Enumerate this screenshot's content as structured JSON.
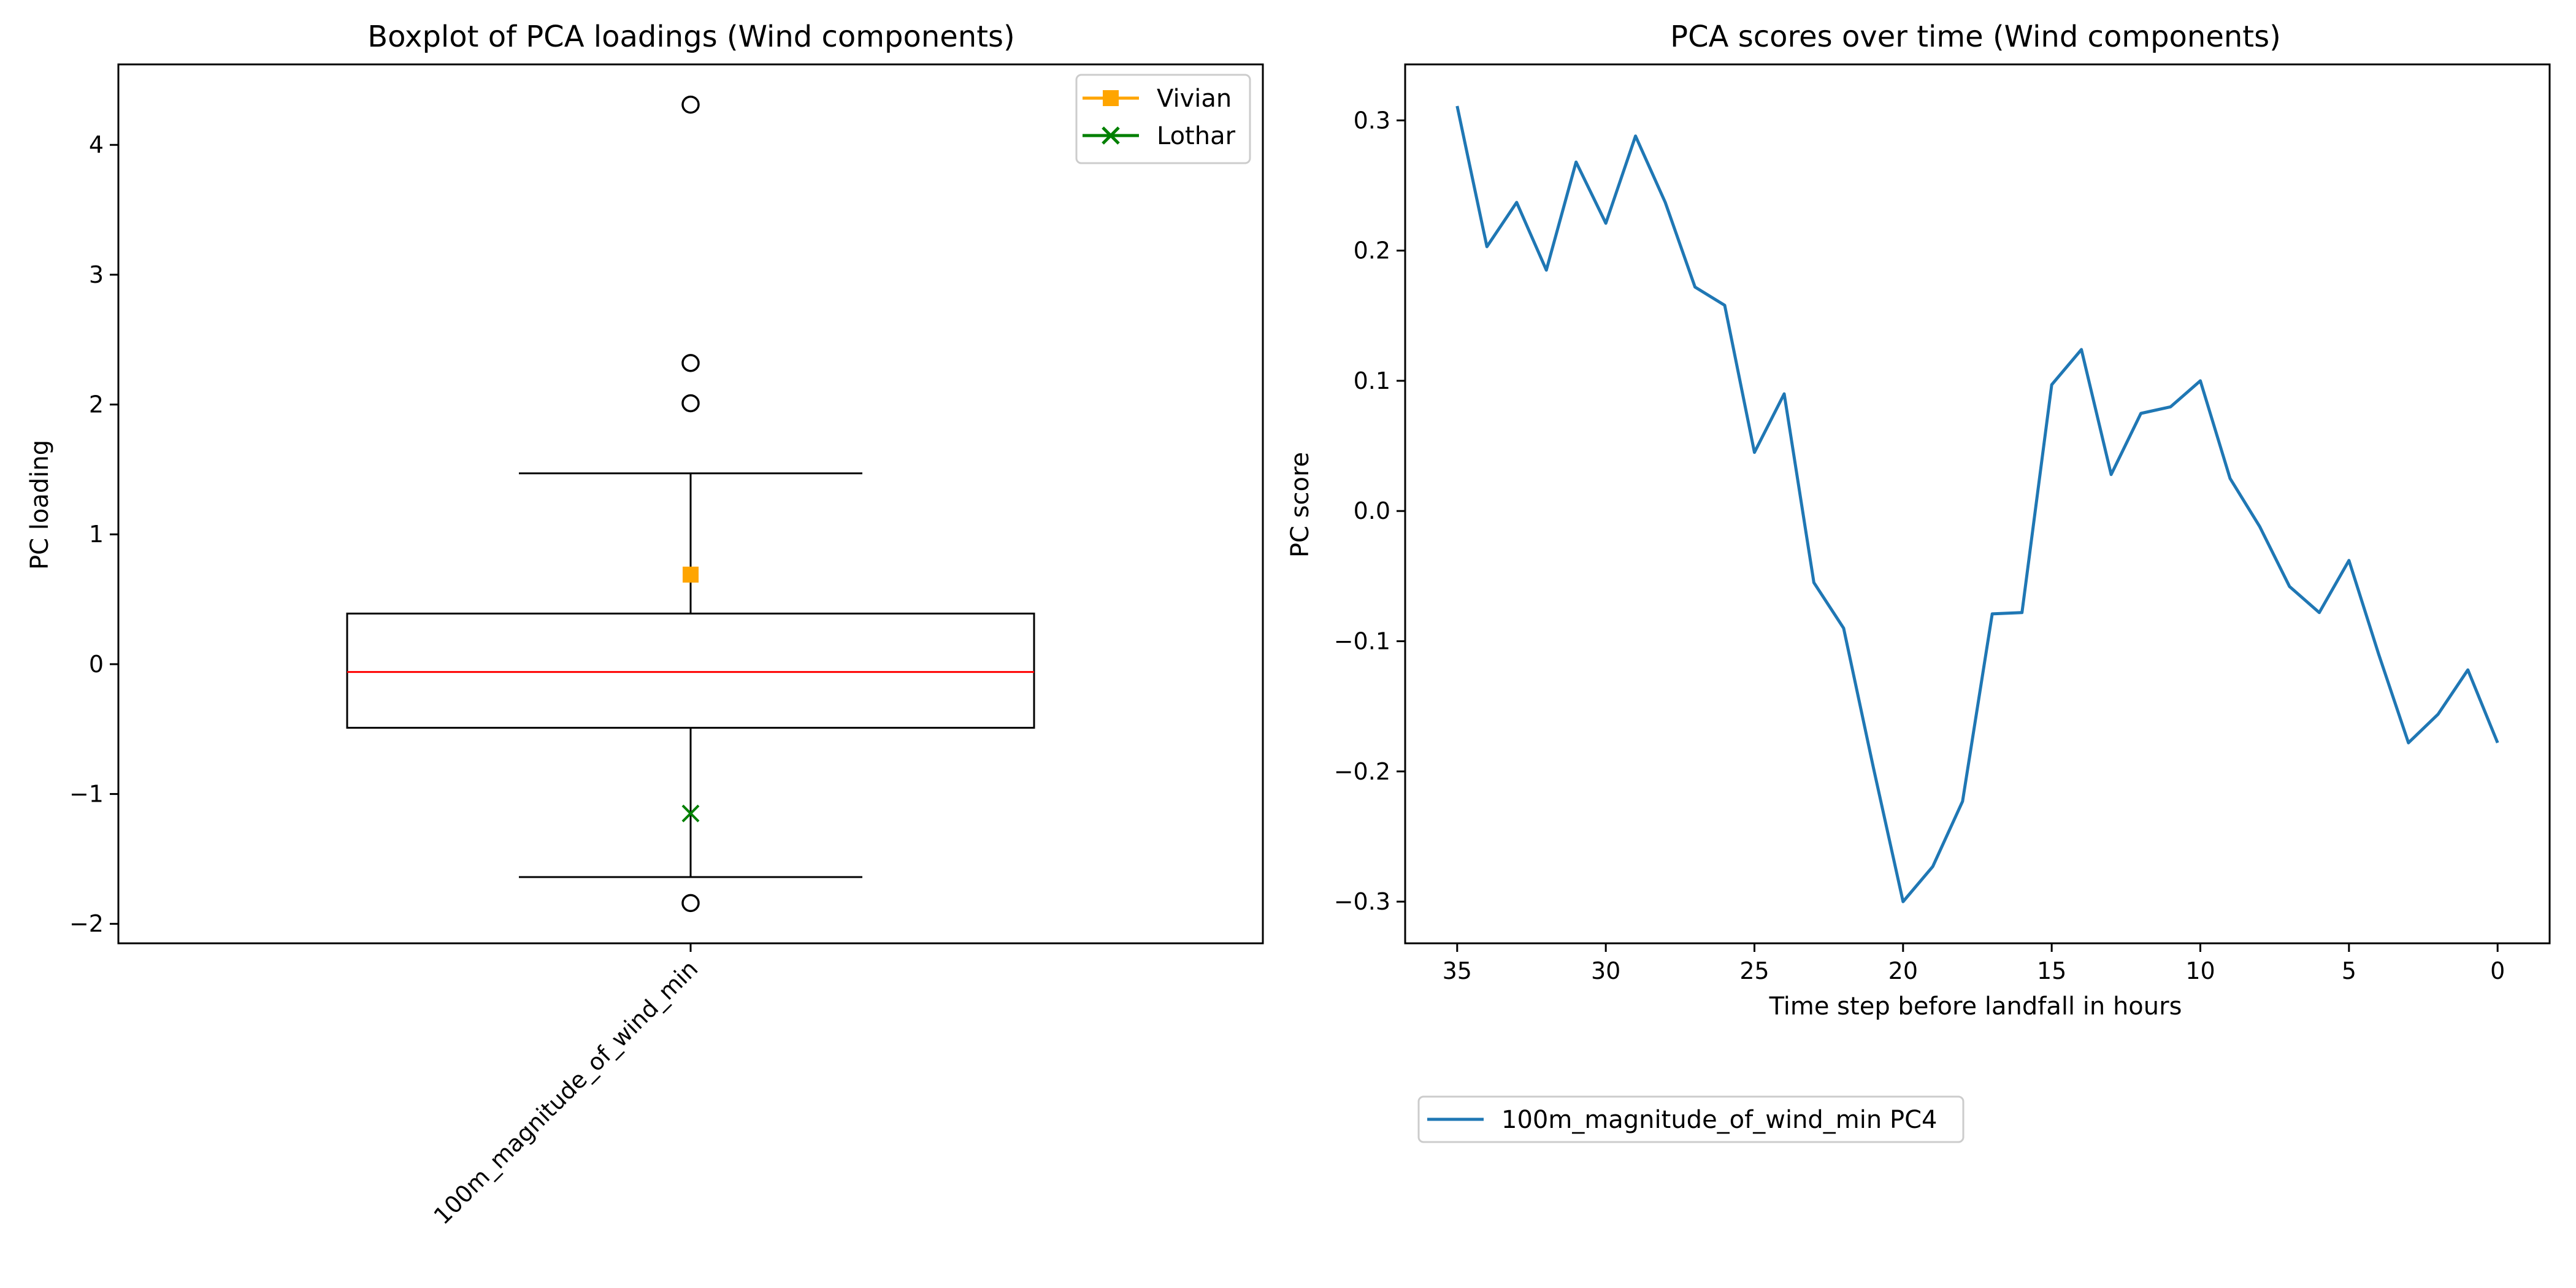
{
  "colors": {
    "box": "#000000",
    "median": "#ff0000",
    "vivian": "#ffa500",
    "lothar": "#008000",
    "line": "#1f77b4"
  },
  "chart_data": [
    {
      "type": "boxplot",
      "title": "Boxplot of PCA loadings (Wind components)",
      "xlabel": "",
      "ylabel": "PC loading",
      "categories": [
        "100m_magnitude_of_wind_min"
      ],
      "ylim": [
        -2.15,
        4.62
      ],
      "yticks": [
        -2,
        -1,
        0,
        1,
        2,
        3,
        4
      ],
      "ytick_labels": [
        "−2",
        "−1",
        "0",
        "1",
        "2",
        "3",
        "4"
      ],
      "box": {
        "q1": -0.49,
        "median": -0.06,
        "q3": 0.39,
        "whisker_low": -1.64,
        "whisker_high": 1.47
      },
      "outliers": [
        4.31,
        2.32,
        2.01,
        -1.84
      ],
      "markers": [
        {
          "name": "Vivian",
          "value": 0.69,
          "marker": "square"
        },
        {
          "name": "Lothar",
          "value": -1.15,
          "marker": "x"
        }
      ],
      "legend": {
        "placement": "top-right",
        "entries": [
          "Vivian",
          "Lothar"
        ]
      }
    },
    {
      "type": "line",
      "title": "PCA scores over time (Wind components)",
      "xlabel": "Time step before landfall in hours",
      "ylabel": "PC score",
      "x_inverted": true,
      "xlim": [
        36.75,
        -1.75
      ],
      "xticks": [
        35,
        30,
        25,
        20,
        15,
        10,
        5,
        0
      ],
      "xtick_labels": [
        "35",
        "30",
        "25",
        "20",
        "15",
        "10",
        "5",
        "0"
      ],
      "ylim": [
        -0.332,
        0.343
      ],
      "yticks": [
        -0.3,
        -0.2,
        -0.1,
        0.0,
        0.1,
        0.2,
        0.3
      ],
      "ytick_labels": [
        "−0.3",
        "−0.2",
        "−0.1",
        "0.0",
        "0.1",
        "0.2",
        "0.3"
      ],
      "series": [
        {
          "name": "100m_magnitude_of_wind_min PC4",
          "x": [
            35,
            34,
            33,
            32,
            31,
            30,
            29,
            28,
            27,
            26,
            25,
            24,
            23,
            22,
            21,
            20,
            19,
            18,
            17,
            16,
            15,
            14,
            13,
            12,
            11,
            10,
            9,
            8,
            7,
            6,
            5,
            4,
            3,
            2,
            1,
            0
          ],
          "y": [
            0.311,
            0.203,
            0.237,
            0.185,
            0.268,
            0.221,
            0.288,
            0.237,
            0.172,
            0.158,
            0.045,
            0.09,
            -0.055,
            -0.09,
            -0.197,
            -0.3,
            -0.273,
            -0.223,
            -0.079,
            -0.078,
            0.097,
            0.124,
            0.028,
            0.075,
            0.08,
            0.1,
            0.025,
            -0.012,
            -0.058,
            -0.078,
            -0.038,
            -0.11,
            -0.178,
            -0.156,
            -0.122,
            -0.178
          ]
        }
      ],
      "legend": {
        "placement": "below-left",
        "entries": [
          "100m_magnitude_of_wind_min PC4"
        ]
      }
    }
  ]
}
